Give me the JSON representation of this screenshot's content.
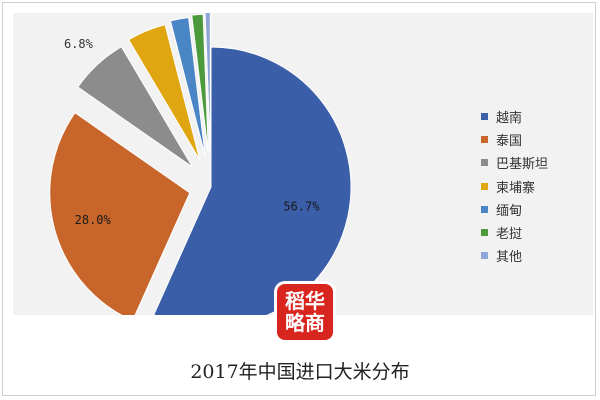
{
  "caption": "2017年中国进口大米分布",
  "logo": {
    "line1": "稻华",
    "line2": "略商"
  },
  "chart_data": {
    "type": "pie",
    "title": "2017年中国进口大米分布",
    "legend_position": "right",
    "slices": [
      {
        "label": "越南",
        "value": 56.7,
        "display": "56.7%",
        "color": "#3a5ea8"
      },
      {
        "label": "泰国",
        "value": 28.0,
        "display": "28.0%",
        "color": "#c8652a"
      },
      {
        "label": "巴基斯坦",
        "value": 6.8,
        "display": "6.8%",
        "color": "#8c8c8c"
      },
      {
        "label": "柬埔寨",
        "value": 4.5,
        "display": "4.5%",
        "color": "#e0a612"
      },
      {
        "label": "缅甸",
        "value": 2.1,
        "display": "2.1%",
        "color": "#4a86c5"
      },
      {
        "label": "老挝",
        "value": 1.3,
        "display": "1.3%",
        "color": "#4d9a3c"
      },
      {
        "label": "其他",
        "value": 0.6,
        "display": "0.6%",
        "color": "#8ea6d6"
      }
    ]
  }
}
